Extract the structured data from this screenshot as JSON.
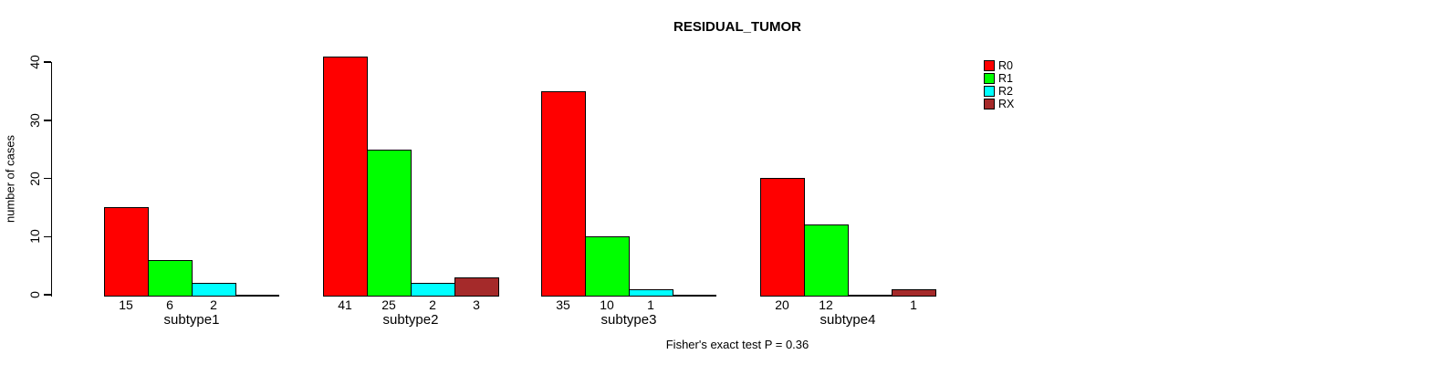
{
  "chart_data": {
    "type": "bar",
    "title": "RESIDUAL_TUMOR",
    "xlabel": "",
    "ylabel": "number of cases",
    "ylim": [
      0,
      40
    ],
    "yticks": [
      0,
      10,
      20,
      30,
      40
    ],
    "grid": false,
    "legend_position": "right",
    "categories": [
      "subtype1",
      "subtype2",
      "subtype3",
      "subtype4"
    ],
    "series": [
      {
        "name": "R0",
        "color": "#FF0000",
        "values": [
          15,
          41,
          35,
          20
        ]
      },
      {
        "name": "R1",
        "color": "#00FF00",
        "values": [
          6,
          25,
          10,
          12
        ]
      },
      {
        "name": "R2",
        "color": "#00FFFF",
        "values": [
          2,
          2,
          1,
          null
        ]
      },
      {
        "name": "RX",
        "color": "#A52A2A",
        "values": [
          null,
          3,
          null,
          1
        ]
      }
    ],
    "bar_value_labels": true,
    "annotation": "Fisher's exact test P = 0.36"
  }
}
